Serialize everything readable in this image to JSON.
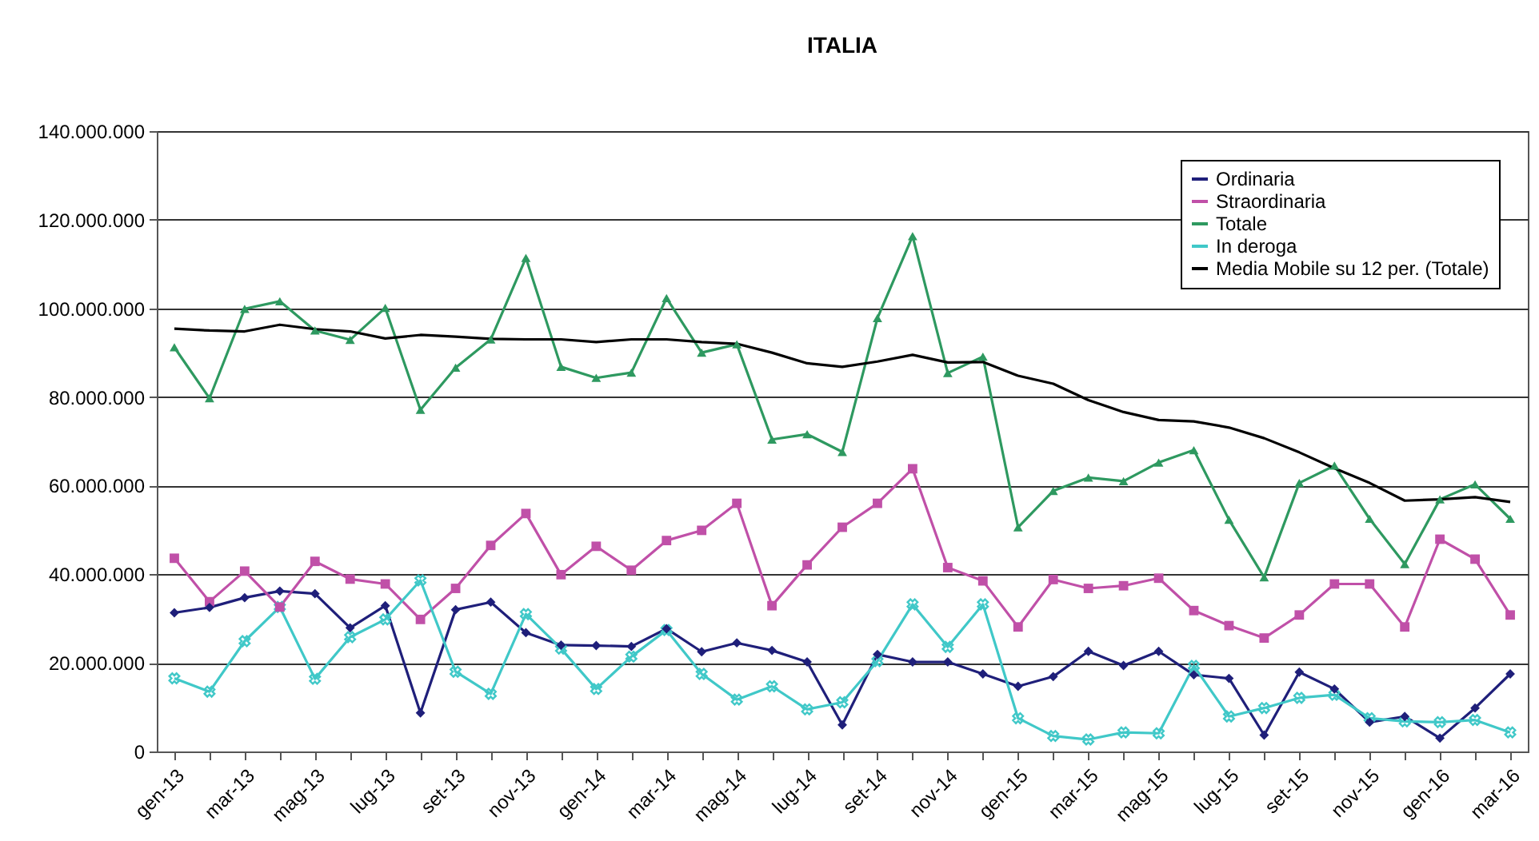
{
  "chart_data": {
    "type": "line",
    "title": "ITALIA",
    "categories": [
      "gen-13",
      null,
      "mar-13",
      null,
      "mag-13",
      null,
      "lug-13",
      null,
      "set-13",
      null,
      "nov-13",
      null,
      "gen-14",
      null,
      "mar-14",
      null,
      "mag-14",
      null,
      "lug-14",
      null,
      "set-14",
      null,
      "nov-14",
      null,
      "gen-15",
      null,
      "mar-15",
      null,
      "mag-15",
      null,
      "lug-15",
      null,
      "set-15",
      null,
      "nov-15",
      null,
      "gen-16",
      null,
      "mar-16"
    ],
    "series": [
      {
        "name": "Ordinaria",
        "color": "#1f1f7a",
        "marker": "diamond",
        "values": [
          31300000,
          32500000,
          34700000,
          36200000,
          35600000,
          27900000,
          32900000,
          8700000,
          32000000,
          33700000,
          26800000,
          24000000,
          23900000,
          23700000,
          27700000,
          22500000,
          24500000,
          22800000,
          20200000,
          6000000,
          21900000,
          20200000,
          20200000,
          17500000,
          14700000,
          16900000,
          22600000,
          19400000,
          22600000,
          17300000,
          16500000,
          3700000,
          17900000,
          14100000,
          6600000,
          7900000,
          3000000,
          9800000,
          17500000
        ]
      },
      {
        "name": "Straordinaria",
        "color": "#c050a8",
        "marker": "square",
        "values": [
          43600000,
          33800000,
          40700000,
          32600000,
          42900000,
          38900000,
          37800000,
          29800000,
          36800000,
          46500000,
          53700000,
          39900000,
          46300000,
          40900000,
          47600000,
          49900000,
          56000000,
          32900000,
          42100000,
          50600000,
          56000000,
          63800000,
          41500000,
          38500000,
          28100000,
          38800000,
          36800000,
          37400000,
          39100000,
          31800000,
          28400000,
          25600000,
          30800000,
          37800000,
          37800000,
          28100000,
          47900000,
          43400000,
          30800000
        ]
      },
      {
        "name": "Totale",
        "color": "#2e9960",
        "marker": "triangle",
        "values": [
          91200000,
          79700000,
          99900000,
          101600000,
          95000000,
          92900000,
          100100000,
          77100000,
          86600000,
          93000000,
          111400000,
          86800000,
          84300000,
          85500000,
          102300000,
          90000000,
          91900000,
          70400000,
          71600000,
          67600000,
          97800000,
          116300000,
          85400000,
          89100000,
          50600000,
          58800000,
          61800000,
          61000000,
          65200000,
          68000000,
          52300000,
          39300000,
          60600000,
          64500000,
          52500000,
          42300000,
          56900000,
          60300000,
          52500000
        ]
      },
      {
        "name": "In deroga",
        "color": "#40c8c8",
        "marker": "cross",
        "values": [
          16500000,
          13500000,
          24900000,
          32600000,
          16400000,
          25800000,
          29800000,
          38600000,
          18000000,
          13000000,
          31000000,
          23200000,
          14100000,
          21400000,
          27400000,
          17500000,
          11700000,
          14700000,
          9500000,
          11100000,
          20400000,
          33200000,
          23600000,
          33200000,
          7500000,
          3500000,
          2700000,
          4300000,
          4100000,
          19300000,
          7900000,
          9800000,
          12100000,
          12800000,
          7500000,
          6800000,
          6600000,
          7100000,
          4300000
        ]
      },
      {
        "name": "Media Mobile su 12 per. (Totale)",
        "color": "#000000",
        "marker": "none",
        "values": [
          95400000,
          95000000,
          94800000,
          96300000,
          95300000,
          94800000,
          93200000,
          94000000,
          93600000,
          93100000,
          93000000,
          93000000,
          92400000,
          93000000,
          93000000,
          92400000,
          92000000,
          90000000,
          87600000,
          86800000,
          88000000,
          89500000,
          87800000,
          87900000,
          84800000,
          83000000,
          79300000,
          76600000,
          74800000,
          74500000,
          73100000,
          70700000,
          67500000,
          63900000,
          60600000,
          56600000,
          56900000,
          57400000,
          56300000
        ]
      }
    ],
    "ylim": [
      0,
      140000000
    ],
    "yticks": [
      {
        "value": 0,
        "label": "0"
      },
      {
        "value": 20000000,
        "label": "20.000.000"
      },
      {
        "value": 40000000,
        "label": "40.000.000"
      },
      {
        "value": 60000000,
        "label": "60.000.000"
      },
      {
        "value": 80000000,
        "label": "80.000.000"
      },
      {
        "value": 100000000,
        "label": "100.000.000"
      },
      {
        "value": 120000000,
        "label": "120.000.000"
      },
      {
        "value": 140000000,
        "label": "140.000.000"
      }
    ],
    "grid": "y",
    "legend": "top right",
    "line_style": "solid"
  }
}
